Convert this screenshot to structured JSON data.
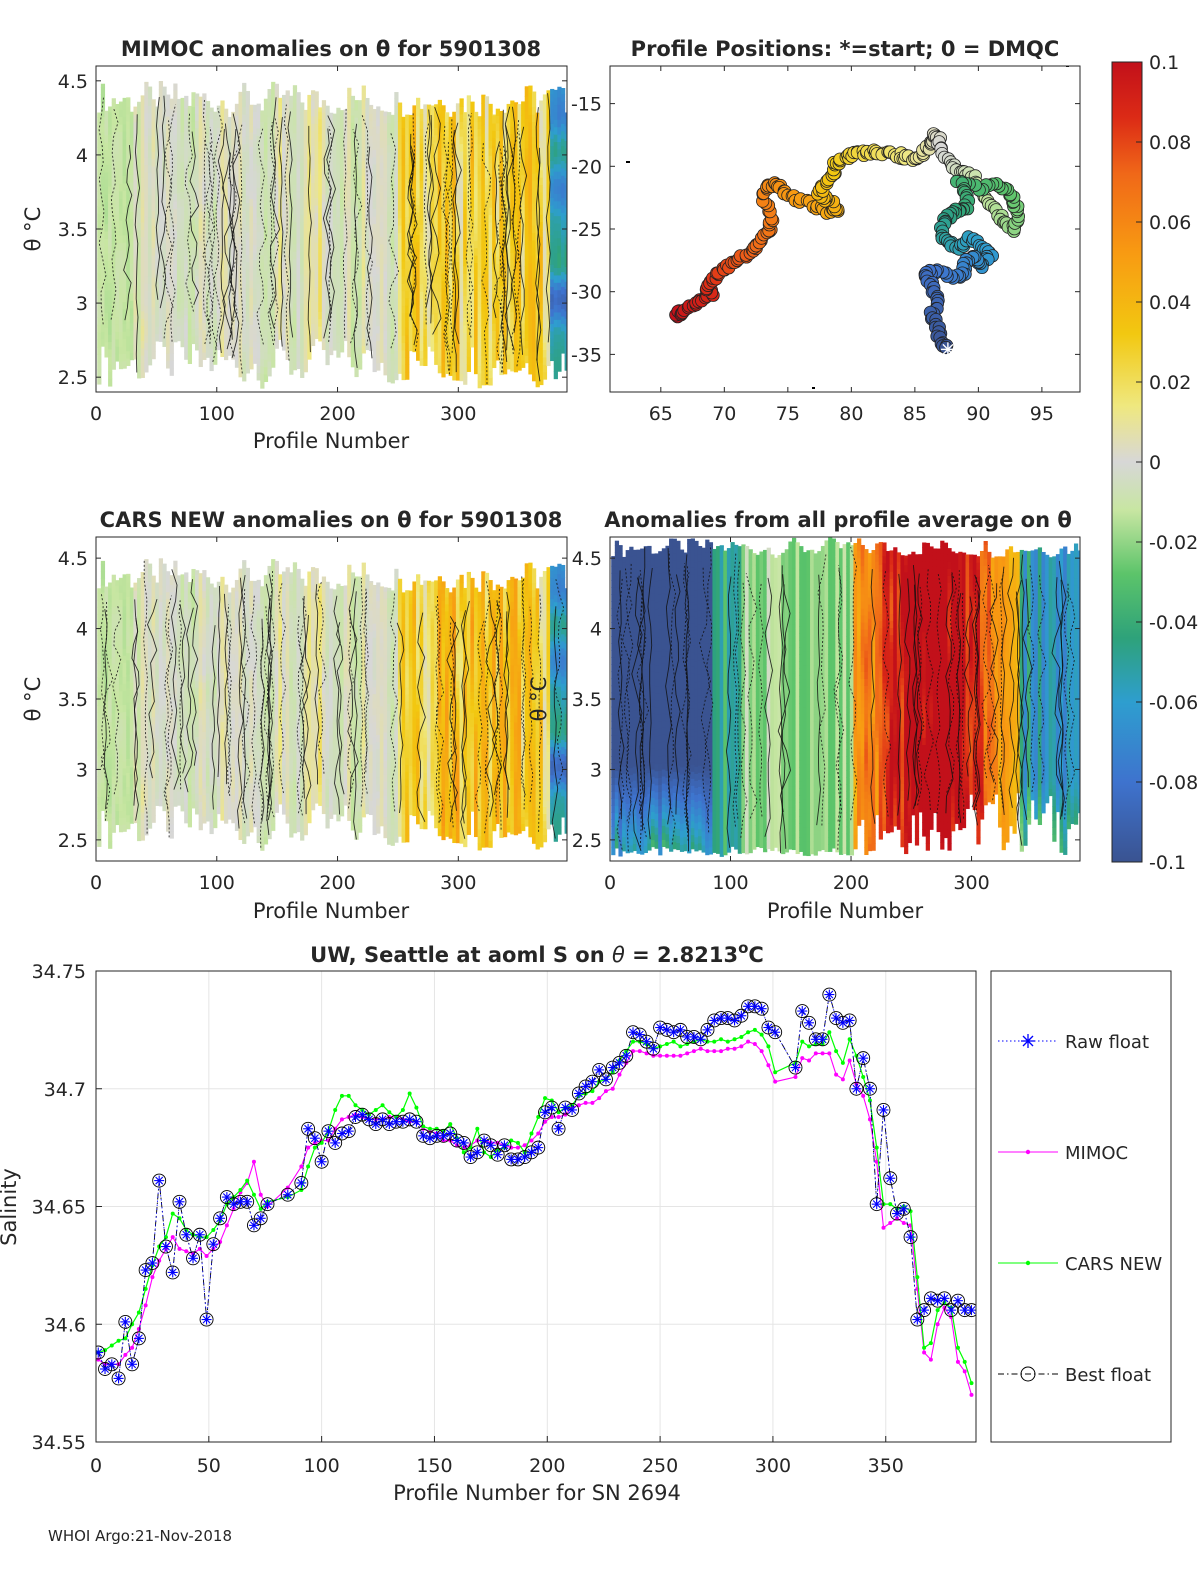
{
  "footer": "WHOI Argo:21-Nov-2018",
  "colorbar": {
    "ticks": [
      "0.1",
      "0.08",
      "0.06",
      "0.04",
      "0.02",
      "0",
      "-0.02",
      "-0.04",
      "-0.06",
      "-0.08",
      "-0.1"
    ],
    "range": [
      -0.1,
      0.1
    ]
  },
  "colors": {
    "raw_float": "#0000ff",
    "mimoc": "#ff00ff",
    "cars_new": "#00ff00",
    "best_float": "#000000",
    "grid": "#e5e5e5"
  },
  "chart_data": [
    {
      "id": "mimoc",
      "type": "heatmap",
      "title": "MIMOC anomalies on θ  for 5901308",
      "xlabel": "Profile Number",
      "ylabel": "θ °C",
      "xlim": [
        0,
        390
      ],
      "ylim": [
        2.4,
        4.6
      ],
      "xticks": [
        0,
        100,
        200,
        300
      ],
      "yticks": [
        2.5,
        3,
        3.5,
        4,
        4.5
      ],
      "regime": "mimoc"
    },
    {
      "id": "positions",
      "type": "scatter",
      "title": "Profile Positions: *=start; 0 = DMQC",
      "xlabel": "",
      "ylabel": "",
      "xlim": [
        61,
        98
      ],
      "ylim": [
        -38,
        -12
      ],
      "xticks": [
        65,
        70,
        75,
        80,
        85,
        90,
        95
      ],
      "yticks": [
        -15,
        -20,
        -25,
        -30,
        -35
      ],
      "track": [
        [
          87.6,
          -34.6
        ],
        [
          87.0,
          -34.0
        ],
        [
          86.8,
          -33.0
        ],
        [
          86.3,
          -32.0
        ],
        [
          86.9,
          -31.0
        ],
        [
          86.5,
          -30.0
        ],
        [
          86.0,
          -29.0
        ],
        [
          85.8,
          -28.5
        ],
        [
          86.9,
          -28.3
        ],
        [
          88.1,
          -28.8
        ],
        [
          88.9,
          -28.6
        ],
        [
          89.0,
          -27.7
        ],
        [
          89.7,
          -27.3
        ],
        [
          90.3,
          -27.9
        ],
        [
          91.0,
          -27.0
        ],
        [
          90.3,
          -26.3
        ],
        [
          89.4,
          -25.7
        ],
        [
          88.3,
          -26.6
        ],
        [
          87.6,
          -26.1
        ],
        [
          87.0,
          -25.2
        ],
        [
          87.4,
          -24.2
        ],
        [
          88.1,
          -23.6
        ],
        [
          88.9,
          -23.5
        ],
        [
          89.3,
          -22.4
        ],
        [
          88.4,
          -21.3
        ],
        [
          89.9,
          -21.8
        ],
        [
          91.2,
          -21.3
        ],
        [
          92.2,
          -21.9
        ],
        [
          92.9,
          -22.9
        ],
        [
          93.2,
          -24.0
        ],
        [
          92.7,
          -25.0
        ],
        [
          92.0,
          -24.4
        ],
        [
          91.3,
          -23.4
        ],
        [
          90.4,
          -22.4
        ],
        [
          89.6,
          -20.9
        ],
        [
          88.9,
          -20.6
        ],
        [
          88.1,
          -20.2
        ],
        [
          87.4,
          -19.2
        ],
        [
          86.9,
          -18.0
        ],
        [
          86.6,
          -17.5
        ],
        [
          86.1,
          -18.3
        ],
        [
          85.6,
          -19.0
        ],
        [
          85.0,
          -19.4
        ],
        [
          84.1,
          -19.2
        ],
        [
          83.2,
          -19.0
        ],
        [
          82.2,
          -18.8
        ],
        [
          81.3,
          -18.9
        ],
        [
          80.4,
          -19.0
        ],
        [
          79.6,
          -19.3
        ],
        [
          78.8,
          -19.7
        ],
        [
          78.6,
          -20.6
        ],
        [
          78.0,
          -21.3
        ],
        [
          77.3,
          -22.2
        ],
        [
          78.2,
          -22.7
        ],
        [
          79.1,
          -23.4
        ],
        [
          78.2,
          -23.6
        ],
        [
          76.9,
          -23.1
        ],
        [
          75.6,
          -22.6
        ],
        [
          74.7,
          -22.0
        ],
        [
          74.1,
          -21.5
        ],
        [
          73.3,
          -21.6
        ],
        [
          73.2,
          -22.9
        ],
        [
          73.8,
          -24.4
        ],
        [
          73.5,
          -25.3
        ],
        [
          72.8,
          -26.1
        ],
        [
          72.2,
          -26.7
        ],
        [
          71.4,
          -27.3
        ],
        [
          70.6,
          -27.8
        ],
        [
          69.8,
          -28.3
        ],
        [
          69.1,
          -28.9
        ],
        [
          68.6,
          -29.6
        ],
        [
          69.0,
          -30.2
        ],
        [
          68.1,
          -30.7
        ],
        [
          67.3,
          -31.1
        ],
        [
          66.6,
          -31.6
        ],
        [
          66.2,
          -31.8
        ]
      ],
      "start_marker": "*"
    },
    {
      "id": "cars",
      "type": "heatmap",
      "title": "CARS NEW anomalies on θ for 5901308",
      "xlabel": "Profile Number",
      "ylabel": "θ °C",
      "xlim": [
        0,
        390
      ],
      "ylim": [
        2.35,
        4.65
      ],
      "xticks": [
        0,
        100,
        200,
        300
      ],
      "yticks": [
        2.5,
        3,
        3.5,
        4,
        4.5
      ],
      "regime": "cars"
    },
    {
      "id": "allavg",
      "type": "heatmap",
      "title": "Anomalies from all profile average on θ",
      "xlabel": "Profile Number",
      "ylabel": "θ °C",
      "xlim": [
        0,
        390
      ],
      "ylim": [
        2.35,
        4.65
      ],
      "xticks": [
        0,
        100,
        200,
        300
      ],
      "yticks": [
        2.5,
        3,
        3.5,
        4,
        4.5
      ],
      "regime": "allavg"
    },
    {
      "id": "salinity",
      "type": "line",
      "title": "UW, Seattle at aoml S on θ = 2.8213°C",
      "title_parts": [
        "UW, Seattle at aoml S on ",
        "θ",
        " = 2.8213",
        "o",
        "C"
      ],
      "xlabel": "Profile Number for SN 2694",
      "ylabel": "Salinity",
      "xlim": [
        0,
        390
      ],
      "ylim": [
        34.55,
        34.75
      ],
      "xticks": [
        0,
        50,
        100,
        150,
        200,
        250,
        300,
        350
      ],
      "yticks": [
        34.55,
        34.6,
        34.65,
        34.7,
        34.75
      ],
      "x": [
        1,
        4,
        7,
        10,
        13,
        16,
        19,
        22,
        25,
        28,
        31,
        34,
        37,
        40,
        43,
        46,
        49,
        52,
        55,
        58,
        61,
        64,
        67,
        70,
        73,
        76,
        85,
        91,
        94,
        97,
        100,
        103,
        106,
        109,
        112,
        115,
        118,
        121,
        124,
        127,
        130,
        133,
        136,
        139,
        142,
        145,
        148,
        151,
        154,
        157,
        160,
        163,
        166,
        169,
        172,
        175,
        178,
        181,
        184,
        187,
        190,
        193,
        196,
        199,
        202,
        205,
        208,
        211,
        214,
        217,
        220,
        223,
        226,
        229,
        232,
        235,
        238,
        241,
        244,
        247,
        250,
        253,
        256,
        259,
        262,
        265,
        268,
        271,
        274,
        277,
        280,
        283,
        286,
        289,
        292,
        295,
        298,
        301,
        310,
        313,
        316,
        319,
        322,
        325,
        328,
        331,
        334,
        337,
        340,
        343,
        346,
        349,
        352,
        355,
        358,
        361,
        364,
        367,
        370,
        373,
        376,
        379,
        382,
        385,
        388
      ],
      "series": [
        {
          "name": "Raw float",
          "style": "dotted-star",
          "values": [
            34.588,
            34.581,
            34.583,
            34.577,
            34.601,
            34.583,
            34.594,
            34.623,
            34.626,
            34.661,
            34.633,
            34.622,
            34.652,
            34.638,
            34.628,
            34.638,
            34.602,
            34.634,
            34.645,
            34.654,
            34.651,
            34.652,
            34.652,
            34.642,
            34.645,
            34.651,
            34.655,
            34.66,
            34.683,
            34.679,
            34.669,
            34.682,
            34.677,
            34.681,
            34.682,
            34.688,
            34.689,
            34.687,
            34.685,
            34.687,
            34.685,
            34.686,
            34.686,
            34.687,
            34.686,
            34.68,
            34.679,
            34.68,
            34.68,
            34.681,
            34.678,
            34.677,
            34.671,
            34.673,
            34.678,
            34.676,
            34.672,
            34.676,
            34.67,
            34.67,
            34.671,
            34.673,
            34.675,
            34.69,
            34.692,
            34.683,
            34.692,
            34.691,
            34.698,
            34.701,
            34.703,
            34.708,
            34.704,
            34.709,
            34.711,
            34.714,
            34.724,
            34.723,
            34.72,
            34.717,
            34.726,
            34.725,
            34.724,
            34.725,
            34.722,
            34.722,
            34.721,
            34.725,
            34.729,
            34.73,
            34.73,
            34.729,
            34.731,
            34.735,
            34.735,
            34.734,
            34.726,
            34.724,
            34.709,
            34.733,
            34.728,
            34.721,
            34.721,
            34.74,
            34.73,
            34.728,
            34.729,
            34.7,
            34.713,
            34.7,
            34.651,
            34.691,
            34.662,
            34.647,
            34.649,
            34.637,
            34.602,
            34.606,
            34.611,
            34.61,
            34.611,
            34.606,
            34.61,
            34.606,
            34.606
          ]
        },
        {
          "name": "MIMOC",
          "style": "magenta-dots",
          "values": [
            34.585,
            34.583,
            34.583,
            34.583,
            34.587,
            34.59,
            34.598,
            34.608,
            34.62,
            34.627,
            34.632,
            34.637,
            34.632,
            34.631,
            34.63,
            34.632,
            34.629,
            34.632,
            34.635,
            34.642,
            34.649,
            34.656,
            34.66,
            34.669,
            34.655,
            34.65,
            34.658,
            34.667,
            34.675,
            34.677,
            34.678,
            34.678,
            34.683,
            34.687,
            34.688,
            34.689,
            34.688,
            34.687,
            34.687,
            34.687,
            34.688,
            34.688,
            34.687,
            34.686,
            34.686,
            34.683,
            34.682,
            34.681,
            34.678,
            34.678,
            34.676,
            34.675,
            34.676,
            34.678,
            34.678,
            34.677,
            34.677,
            34.676,
            34.675,
            34.675,
            34.676,
            34.678,
            34.681,
            34.686,
            34.688,
            34.688,
            34.689,
            34.692,
            34.693,
            34.694,
            34.694,
            34.696,
            34.699,
            34.7,
            34.706,
            34.711,
            34.716,
            34.716,
            34.715,
            34.714,
            34.714,
            34.714,
            34.714,
            34.714,
            34.715,
            34.716,
            34.717,
            34.716,
            34.716,
            34.716,
            34.717,
            34.717,
            34.718,
            34.72,
            34.719,
            34.716,
            34.71,
            34.703,
            34.705,
            34.713,
            34.712,
            34.715,
            34.715,
            34.715,
            34.706,
            34.704,
            34.712,
            34.702,
            34.697,
            34.687,
            34.669,
            34.641,
            34.643,
            34.645,
            34.643,
            34.642,
            34.615,
            34.588,
            34.585,
            34.6,
            34.607,
            34.603,
            34.584,
            34.58,
            34.57
          ]
        },
        {
          "name": "CARS NEW",
          "style": "green-dots",
          "values": [
            34.588,
            34.589,
            34.591,
            34.593,
            34.594,
            34.6,
            34.605,
            34.615,
            34.625,
            34.633,
            34.637,
            34.647,
            34.645,
            34.64,
            34.638,
            34.637,
            34.637,
            34.64,
            34.644,
            34.651,
            34.654,
            34.657,
            34.661,
            34.655,
            34.649,
            34.652,
            34.654,
            34.657,
            34.667,
            34.675,
            34.677,
            34.682,
            34.691,
            34.697,
            34.697,
            34.693,
            34.691,
            34.689,
            34.691,
            34.693,
            34.69,
            34.688,
            34.691,
            34.698,
            34.692,
            34.684,
            34.683,
            34.683,
            34.682,
            34.685,
            34.679,
            34.673,
            34.675,
            34.683,
            34.673,
            34.671,
            34.674,
            34.675,
            34.678,
            34.677,
            34.673,
            34.681,
            34.688,
            34.696,
            34.695,
            34.69,
            34.692,
            34.693,
            34.697,
            34.698,
            34.699,
            34.703,
            34.704,
            34.707,
            34.712,
            34.716,
            34.72,
            34.72,
            34.719,
            34.717,
            34.718,
            34.719,
            34.72,
            34.718,
            34.719,
            34.72,
            34.721,
            34.72,
            34.72,
            34.721,
            34.72,
            34.721,
            34.722,
            34.724,
            34.725,
            34.723,
            34.718,
            34.707,
            34.711,
            34.72,
            34.718,
            34.719,
            34.719,
            34.724,
            34.716,
            34.711,
            34.721,
            34.714,
            34.705,
            34.695,
            34.675,
            34.651,
            34.651,
            34.649,
            34.65,
            34.648,
            34.62,
            34.59,
            34.592,
            34.606,
            34.609,
            34.607,
            34.59,
            34.584,
            34.575
          ]
        },
        {
          "name": "Best float",
          "style": "dashdot-circle",
          "values": [
            34.588,
            34.581,
            34.583,
            34.577,
            34.601,
            34.583,
            34.594,
            34.623,
            34.626,
            34.661,
            34.633,
            34.622,
            34.652,
            34.638,
            34.628,
            34.638,
            34.602,
            34.634,
            34.645,
            34.654,
            34.651,
            34.652,
            34.652,
            34.642,
            34.645,
            34.651,
            34.655,
            34.66,
            34.683,
            34.679,
            34.669,
            34.682,
            34.677,
            34.681,
            34.682,
            34.688,
            34.689,
            34.687,
            34.685,
            34.687,
            34.685,
            34.686,
            34.686,
            34.687,
            34.686,
            34.68,
            34.679,
            34.68,
            34.68,
            34.681,
            34.678,
            34.677,
            34.671,
            34.673,
            34.678,
            34.676,
            34.672,
            34.676,
            34.67,
            34.67,
            34.671,
            34.673,
            34.675,
            34.69,
            34.692,
            34.683,
            34.692,
            34.691,
            34.698,
            34.701,
            34.703,
            34.708,
            34.704,
            34.709,
            34.711,
            34.714,
            34.724,
            34.723,
            34.72,
            34.717,
            34.726,
            34.725,
            34.724,
            34.725,
            34.722,
            34.722,
            34.721,
            34.725,
            34.729,
            34.73,
            34.73,
            34.729,
            34.731,
            34.735,
            34.735,
            34.734,
            34.726,
            34.724,
            34.709,
            34.733,
            34.728,
            34.721,
            34.721,
            34.74,
            34.73,
            34.728,
            34.729,
            34.7,
            34.713,
            34.7,
            34.651,
            34.691,
            34.662,
            34.647,
            34.649,
            34.637,
            34.602,
            34.606,
            34.611,
            34.61,
            34.611,
            34.606,
            34.61,
            34.606,
            34.606
          ]
        }
      ]
    }
  ]
}
